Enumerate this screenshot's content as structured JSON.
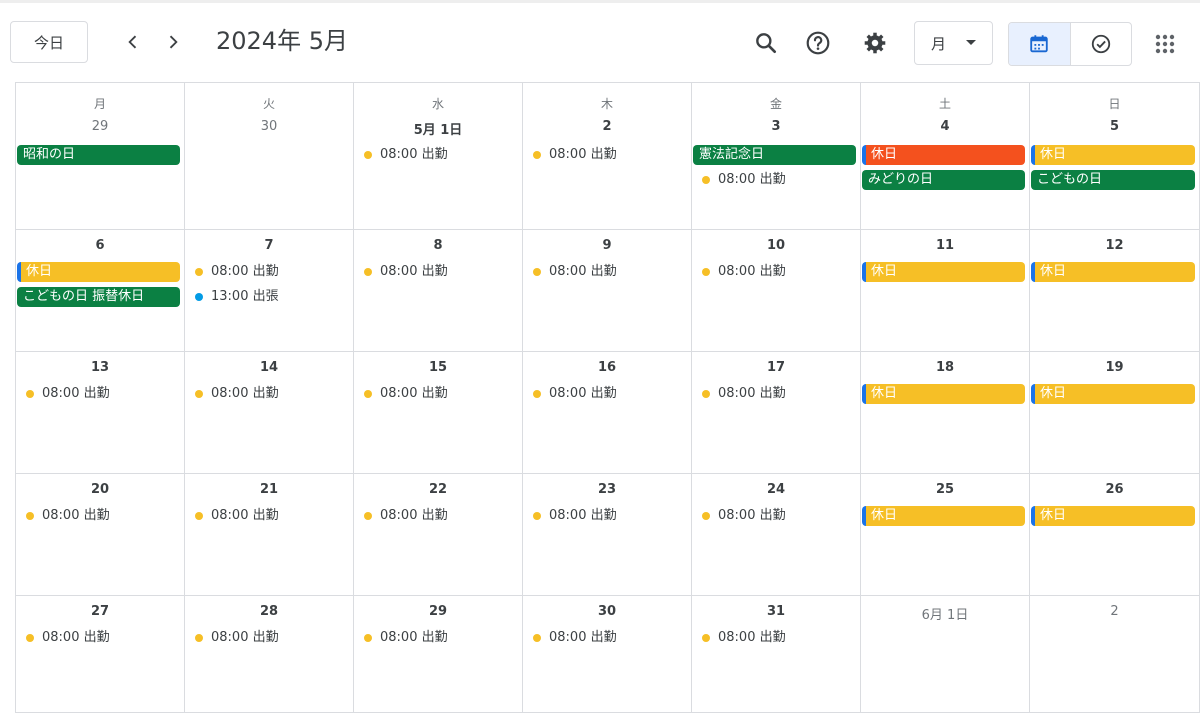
{
  "header": {
    "today_label": "今日",
    "title": "2024年 5月",
    "view_label": "月",
    "icons": [
      "chevron-left-icon",
      "chevron-right-icon",
      "search-icon",
      "help-icon",
      "settings-icon",
      "caret-down-icon",
      "calendar-icon",
      "tasks-icon",
      "apps-icon"
    ]
  },
  "colors": {
    "green": "#0b8043",
    "yellow": "#f6bf26",
    "tomato": "#f4511e",
    "peacock": "#039be5",
    "stripe": "#1a73e8",
    "active_toggle": "#e8f0fe"
  },
  "weekdays": [
    "月",
    "火",
    "水",
    "木",
    "金",
    "土",
    "日"
  ],
  "weeks": [
    [
      {
        "date": "29",
        "other": true,
        "items": [
          {
            "kind": "chip",
            "text": "昭和の日",
            "color": "green"
          }
        ]
      },
      {
        "date": "30",
        "other": true,
        "items": []
      },
      {
        "date": "5月 1日",
        "items": [
          {
            "kind": "dot",
            "text": "08:00 出勤",
            "color": "yellow"
          }
        ]
      },
      {
        "date": "2",
        "items": [
          {
            "kind": "dot",
            "text": "08:00 出勤",
            "color": "yellow"
          }
        ]
      },
      {
        "date": "3",
        "items": [
          {
            "kind": "chip",
            "text": "憲法記念日",
            "color": "green"
          },
          {
            "kind": "dot",
            "text": "08:00 出勤",
            "color": "yellow"
          }
        ]
      },
      {
        "date": "4",
        "items": [
          {
            "kind": "chip",
            "text": "休日",
            "color": "tomato",
            "stripe": true
          },
          {
            "kind": "chip",
            "text": "みどりの日",
            "color": "green"
          }
        ]
      },
      {
        "date": "5",
        "items": [
          {
            "kind": "chip",
            "text": "休日",
            "color": "yellow",
            "stripe": true
          },
          {
            "kind": "chip",
            "text": "こどもの日",
            "color": "green"
          }
        ]
      }
    ],
    [
      {
        "date": "6",
        "items": [
          {
            "kind": "chip",
            "text": "休日",
            "color": "yellow",
            "stripe": true
          },
          {
            "kind": "chip",
            "text": "こどもの日 振替休日",
            "color": "green"
          }
        ]
      },
      {
        "date": "7",
        "items": [
          {
            "kind": "dot",
            "text": "08:00 出勤",
            "color": "yellow"
          },
          {
            "kind": "dot",
            "text": "13:00 出張",
            "color": "peacock"
          }
        ]
      },
      {
        "date": "8",
        "items": [
          {
            "kind": "dot",
            "text": "08:00 出勤",
            "color": "yellow"
          }
        ]
      },
      {
        "date": "9",
        "items": [
          {
            "kind": "dot",
            "text": "08:00 出勤",
            "color": "yellow"
          }
        ]
      },
      {
        "date": "10",
        "items": [
          {
            "kind": "dot",
            "text": "08:00 出勤",
            "color": "yellow"
          }
        ]
      },
      {
        "date": "11",
        "items": [
          {
            "kind": "chip",
            "text": "休日",
            "color": "yellow",
            "stripe": true
          }
        ]
      },
      {
        "date": "12",
        "items": [
          {
            "kind": "chip",
            "text": "休日",
            "color": "yellow",
            "stripe": true
          }
        ]
      }
    ],
    [
      {
        "date": "13",
        "items": [
          {
            "kind": "dot",
            "text": "08:00 出勤",
            "color": "yellow"
          }
        ]
      },
      {
        "date": "14",
        "items": [
          {
            "kind": "dot",
            "text": "08:00 出勤",
            "color": "yellow"
          }
        ]
      },
      {
        "date": "15",
        "items": [
          {
            "kind": "dot",
            "text": "08:00 出勤",
            "color": "yellow"
          }
        ]
      },
      {
        "date": "16",
        "items": [
          {
            "kind": "dot",
            "text": "08:00 出勤",
            "color": "yellow"
          }
        ]
      },
      {
        "date": "17",
        "items": [
          {
            "kind": "dot",
            "text": "08:00 出勤",
            "color": "yellow"
          }
        ]
      },
      {
        "date": "18",
        "items": [
          {
            "kind": "chip",
            "text": "休日",
            "color": "yellow",
            "stripe": true
          }
        ]
      },
      {
        "date": "19",
        "items": [
          {
            "kind": "chip",
            "text": "休日",
            "color": "yellow",
            "stripe": true
          }
        ]
      }
    ],
    [
      {
        "date": "20",
        "items": [
          {
            "kind": "dot",
            "text": "08:00 出勤",
            "color": "yellow"
          }
        ]
      },
      {
        "date": "21",
        "items": [
          {
            "kind": "dot",
            "text": "08:00 出勤",
            "color": "yellow"
          }
        ]
      },
      {
        "date": "22",
        "items": [
          {
            "kind": "dot",
            "text": "08:00 出勤",
            "color": "yellow"
          }
        ]
      },
      {
        "date": "23",
        "items": [
          {
            "kind": "dot",
            "text": "08:00 出勤",
            "color": "yellow"
          }
        ]
      },
      {
        "date": "24",
        "items": [
          {
            "kind": "dot",
            "text": "08:00 出勤",
            "color": "yellow"
          }
        ]
      },
      {
        "date": "25",
        "items": [
          {
            "kind": "chip",
            "text": "休日",
            "color": "yellow",
            "stripe": true
          }
        ]
      },
      {
        "date": "26",
        "items": [
          {
            "kind": "chip",
            "text": "休日",
            "color": "yellow",
            "stripe": true
          }
        ]
      }
    ],
    [
      {
        "date": "27",
        "items": [
          {
            "kind": "dot",
            "text": "08:00 出勤",
            "color": "yellow"
          }
        ]
      },
      {
        "date": "28",
        "items": [
          {
            "kind": "dot",
            "text": "08:00 出勤",
            "color": "yellow"
          }
        ]
      },
      {
        "date": "29",
        "items": [
          {
            "kind": "dot",
            "text": "08:00 出勤",
            "color": "yellow"
          }
        ]
      },
      {
        "date": "30",
        "items": [
          {
            "kind": "dot",
            "text": "08:00 出勤",
            "color": "yellow"
          }
        ]
      },
      {
        "date": "31",
        "items": [
          {
            "kind": "dot",
            "text": "08:00 出勤",
            "color": "yellow"
          }
        ]
      },
      {
        "date": "6月 1日",
        "other": true,
        "items": []
      },
      {
        "date": "2",
        "other": true,
        "items": []
      }
    ]
  ]
}
